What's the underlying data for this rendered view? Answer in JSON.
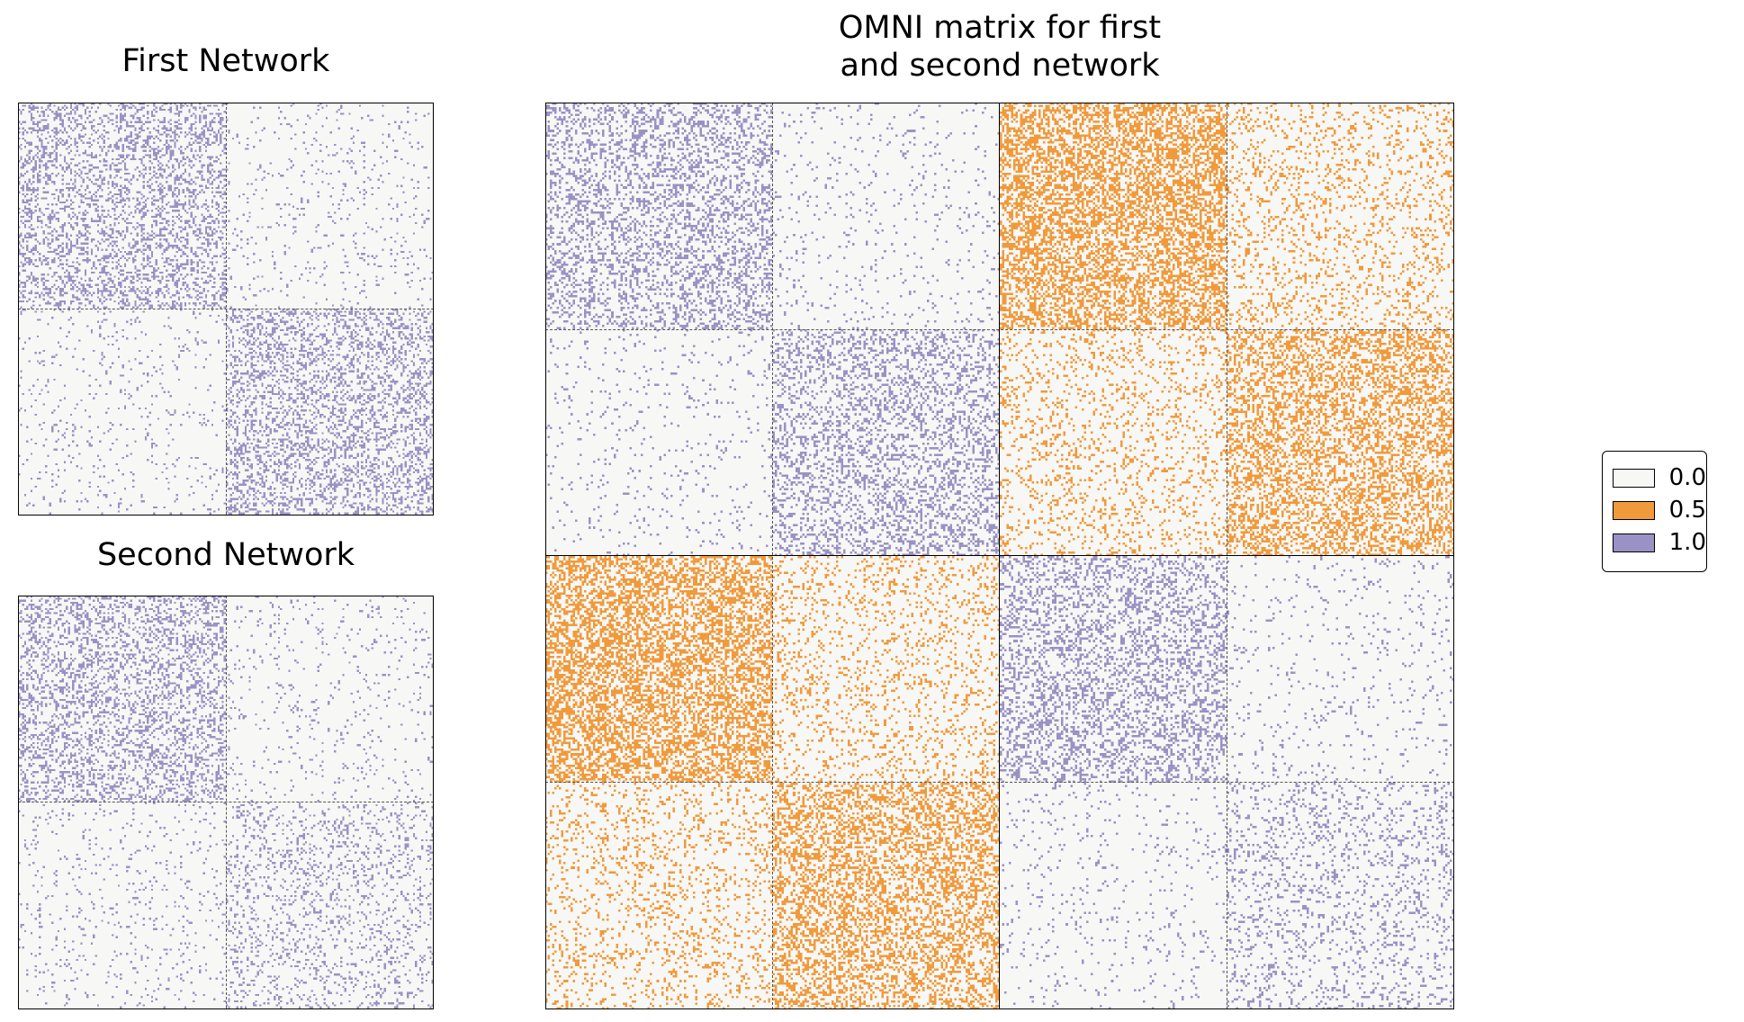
{
  "chart_data": [
    {
      "type": "heatmap",
      "title": "First Network",
      "rows": 200,
      "cols": 200,
      "blocks": [
        {
          "rows": [
            0,
            100
          ],
          "cols": [
            0,
            100
          ],
          "density": 0.3
        },
        {
          "rows": [
            0,
            100
          ],
          "cols": [
            100,
            200
          ],
          "density": 0.05
        },
        {
          "rows": [
            100,
            200
          ],
          "cols": [
            0,
            100
          ],
          "density": 0.05
        },
        {
          "rows": [
            100,
            200
          ],
          "cols": [
            100,
            200
          ],
          "density": 0.3
        }
      ],
      "values": [
        0.0,
        1.0
      ],
      "grid": false
    },
    {
      "type": "heatmap",
      "title": "Second Network",
      "rows": 200,
      "cols": 200,
      "blocks": [
        {
          "rows": [
            0,
            100
          ],
          "cols": [
            0,
            100
          ],
          "density": 0.3
        },
        {
          "rows": [
            0,
            100
          ],
          "cols": [
            100,
            200
          ],
          "density": 0.05
        },
        {
          "rows": [
            100,
            200
          ],
          "cols": [
            0,
            100
          ],
          "density": 0.05
        },
        {
          "rows": [
            100,
            200
          ],
          "cols": [
            100,
            200
          ],
          "density": 0.15
        }
      ],
      "values": [
        0.0,
        1.0
      ],
      "grid": false
    },
    {
      "type": "heatmap",
      "title": "OMNI matrix for first\nand second network",
      "rows": 400,
      "cols": 400,
      "blocks": [
        {
          "rows": [
            0,
            100
          ],
          "cols": [
            0,
            100
          ],
          "density": 0.3,
          "value": 1.0
        },
        {
          "rows": [
            0,
            100
          ],
          "cols": [
            100,
            200
          ],
          "density": 0.05,
          "value": 1.0
        },
        {
          "rows": [
            100,
            200
          ],
          "cols": [
            0,
            100
          ],
          "density": 0.05,
          "value": 1.0
        },
        {
          "rows": [
            100,
            200
          ],
          "cols": [
            100,
            200
          ],
          "density": 0.3,
          "value": 1.0
        },
        {
          "rows": [
            0,
            100
          ],
          "cols": [
            200,
            300
          ],
          "density": 0.5,
          "value": 0.5
        },
        {
          "rows": [
            0,
            100
          ],
          "cols": [
            300,
            400
          ],
          "density": 0.15,
          "value": 0.5
        },
        {
          "rows": [
            100,
            200
          ],
          "cols": [
            200,
            300
          ],
          "density": 0.15,
          "value": 0.5
        },
        {
          "rows": [
            100,
            200
          ],
          "cols": [
            300,
            400
          ],
          "density": 0.4,
          "value": 0.5
        },
        {
          "rows": [
            200,
            300
          ],
          "cols": [
            0,
            100
          ],
          "density": 0.5,
          "value": 0.5
        },
        {
          "rows": [
            200,
            300
          ],
          "cols": [
            100,
            200
          ],
          "density": 0.15,
          "value": 0.5
        },
        {
          "rows": [
            300,
            400
          ],
          "cols": [
            0,
            100
          ],
          "density": 0.15,
          "value": 0.5
        },
        {
          "rows": [
            300,
            400
          ],
          "cols": [
            100,
            200
          ],
          "density": 0.4,
          "value": 0.5
        },
        {
          "rows": [
            200,
            300
          ],
          "cols": [
            200,
            300
          ],
          "density": 0.3,
          "value": 1.0
        },
        {
          "rows": [
            200,
            300
          ],
          "cols": [
            300,
            400
          ],
          "density": 0.05,
          "value": 1.0
        },
        {
          "rows": [
            300,
            400
          ],
          "cols": [
            200,
            300
          ],
          "density": 0.05,
          "value": 1.0
        },
        {
          "rows": [
            300,
            400
          ],
          "cols": [
            300,
            400
          ],
          "density": 0.15,
          "value": 1.0
        }
      ],
      "values": [
        0.0,
        0.5,
        1.0
      ],
      "grid": false
    }
  ],
  "legend": {
    "placement": "right",
    "entries": [
      {
        "label": "0.0",
        "color": "#f7f7f5"
      },
      {
        "label": "0.5",
        "color": "#f09a3c"
      },
      {
        "label": "1.0",
        "color": "#9a92c4"
      }
    ]
  },
  "colors": {
    "background_cell": "#f7f7f5",
    "half_cell": "#f09a3c",
    "full_cell": "#9a92c4"
  }
}
